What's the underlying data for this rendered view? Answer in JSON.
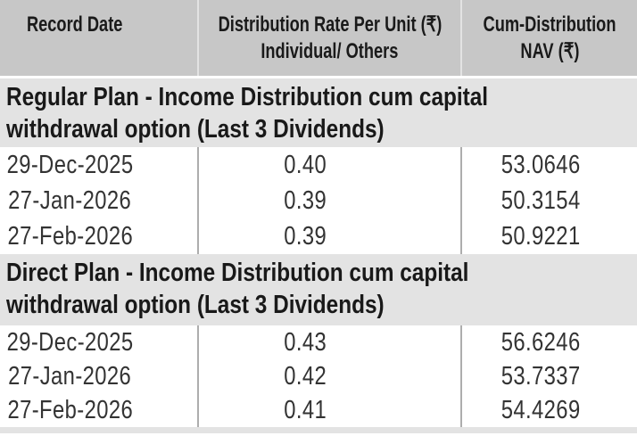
{
  "table": {
    "columns": [
      {
        "label": "Record Date"
      },
      {
        "line1": "Distribution Rate Per Unit (₹)",
        "line2": "Individual/ Others"
      },
      {
        "line1": "Cum-Distribution",
        "line2": "NAV (₹)"
      }
    ],
    "sections": [
      {
        "title_line1": "Regular Plan - Income Distribution cum capital",
        "title_line2": "withdrawal option (Last 3 Dividends)",
        "rows": [
          {
            "record_date": "29-Dec-2025",
            "rate": "0.40",
            "nav": "53.0646"
          },
          {
            "record_date": "27-Jan-2026",
            "rate": "0.39",
            "nav": "50.3154"
          },
          {
            "record_date": "27-Feb-2026",
            "rate": "0.39",
            "nav": "50.9221"
          }
        ]
      },
      {
        "title_line1": "Direct Plan - Income Distribution cum capital",
        "title_line2": "withdrawal option (Last 3 Dividends)",
        "rows": [
          {
            "record_date": "29-Dec-2025",
            "rate": "0.43",
            "nav": "56.6246"
          },
          {
            "record_date": "27-Jan-2026",
            "rate": "0.42",
            "nav": "53.7337"
          },
          {
            "record_date": "27-Feb-2026",
            "rate": "0.41",
            "nav": "54.4269"
          }
        ]
      }
    ]
  },
  "colors": {
    "header_bg": "#c7c7c7",
    "section_bg": "#e3e3e3",
    "header_divider": "#e3e3e3",
    "row_divider": "#adadad",
    "header_text": "#1a1a1a",
    "section_text": "#191919",
    "data_text": "#333333",
    "background": "#ffffff",
    "currency_symbol": "₹"
  }
}
